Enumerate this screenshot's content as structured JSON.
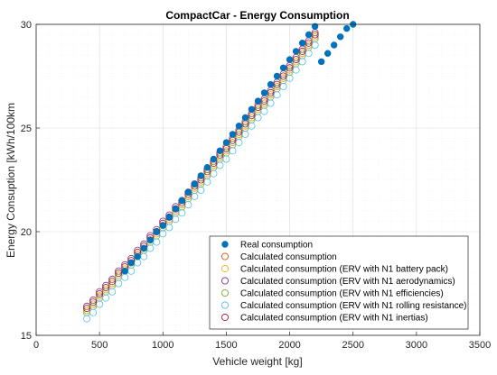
{
  "chart_data": {
    "type": "scatter",
    "title": "CompactCar - Energy Consumption",
    "xlabel": "Vehicle weight [kg]",
    "ylabel": "Energy Consuption [kWh/100km",
    "xlim": [
      0,
      3500
    ],
    "ylim": [
      15,
      30
    ],
    "xticks": [
      "0",
      "500",
      "1000",
      "1500",
      "2000",
      "2500",
      "3000",
      "3500"
    ],
    "yticks": [
      "15",
      "20",
      "25",
      "30"
    ],
    "grid": true,
    "legend_position": "bottom-right",
    "series": [
      {
        "name": "Real consumption",
        "marker": "filled-circle",
        "color": "#0072BD",
        "x": [
          700,
          750,
          800,
          850,
          900,
          950,
          1000,
          1050,
          1100,
          1150,
          1200,
          1250,
          1300,
          1350,
          1400,
          1450,
          1500,
          1550,
          1600,
          1650,
          1700,
          1750,
          1800,
          1850,
          1900,
          1950,
          2000,
          2050,
          2100,
          2150,
          2200,
          2250,
          2300,
          2350,
          2400,
          2450,
          2500
        ],
        "y": [
          18.1,
          18.5,
          18.8,
          19.2,
          19.6,
          20.0,
          20.3,
          20.7,
          21.1,
          21.5,
          21.9,
          22.3,
          22.7,
          23.1,
          23.5,
          23.9,
          24.3,
          24.7,
          25.1,
          25.5,
          25.9,
          26.3,
          26.7,
          27.1,
          27.5,
          27.9,
          28.3,
          28.7,
          29.1,
          29.5,
          29.9,
          28.2,
          28.6,
          29.0,
          29.4,
          29.8,
          30.0
        ]
      },
      {
        "name": "Calculated consumption",
        "marker": "open-circle",
        "color": "#D95319",
        "x": [
          400,
          450,
          500,
          550,
          600,
          650,
          700,
          750,
          800,
          850,
          900,
          950,
          1000,
          1050,
          1100,
          1150,
          1200,
          1250,
          1300,
          1350,
          1400,
          1450,
          1500,
          1550,
          1600,
          1650,
          1700,
          1750,
          1800,
          1850,
          1900,
          1950,
          2000,
          2050,
          2100,
          2150,
          2200
        ],
        "y": [
          16.2,
          16.5,
          16.9,
          17.2,
          17.5,
          17.9,
          18.2,
          18.5,
          18.9,
          19.2,
          19.6,
          19.9,
          20.3,
          20.6,
          21.0,
          21.3,
          21.7,
          22.1,
          22.4,
          22.8,
          23.2,
          23.6,
          23.9,
          24.3,
          24.7,
          25.1,
          25.5,
          25.9,
          26.2,
          26.6,
          27.0,
          27.4,
          27.8,
          28.2,
          28.6,
          29.0,
          29.4
        ]
      },
      {
        "name": "Calculated consumption (ERV with N1 battery pack)",
        "marker": "open-circle",
        "color": "#EDB120",
        "x": [
          400,
          450,
          500,
          550,
          600,
          650,
          700,
          750,
          800,
          850,
          900,
          950,
          1000,
          1050,
          1100,
          1150,
          1200,
          1250,
          1300,
          1350,
          1400,
          1450,
          1500,
          1550,
          1600,
          1650,
          1700,
          1750,
          1800,
          1850,
          1900,
          1950,
          2000,
          2050,
          2100,
          2150,
          2200
        ],
        "y": [
          16.2,
          16.5,
          16.9,
          17.2,
          17.5,
          17.9,
          18.2,
          18.5,
          18.9,
          19.2,
          19.6,
          19.9,
          20.3,
          20.6,
          21.0,
          21.3,
          21.7,
          22.1,
          22.4,
          22.8,
          23.2,
          23.6,
          23.9,
          24.3,
          24.7,
          25.1,
          25.5,
          25.9,
          26.2,
          26.6,
          27.0,
          27.4,
          27.8,
          28.2,
          28.6,
          29.0,
          29.4
        ]
      },
      {
        "name": "Calculated consumption (ERV with N1 aerodynamics)",
        "marker": "open-circle",
        "color": "#7E2F8E",
        "x": [
          400,
          450,
          500,
          550,
          600,
          650,
          700,
          750,
          800,
          850,
          900,
          950,
          1000,
          1050,
          1100,
          1150,
          1200,
          1250,
          1300,
          1350,
          1400,
          1450,
          1500,
          1550,
          1600,
          1650,
          1700,
          1750,
          1800,
          1850,
          1900,
          1950,
          2000,
          2050,
          2100,
          2150,
          2200
        ],
        "y": [
          16.4,
          16.7,
          17.1,
          17.4,
          17.7,
          18.1,
          18.4,
          18.7,
          19.1,
          19.4,
          19.8,
          20.1,
          20.5,
          20.8,
          21.2,
          21.5,
          21.9,
          22.3,
          22.6,
          23.0,
          23.4,
          23.8,
          24.1,
          24.5,
          24.9,
          25.3,
          25.7,
          26.1,
          26.4,
          26.8,
          27.2,
          27.6,
          28.0,
          28.4,
          28.8,
          29.2,
          29.6
        ]
      },
      {
        "name": "Calculated consumption (ERV with N1 efficiencies)",
        "marker": "open-circle",
        "color": "#77AC30",
        "x": [
          400,
          450,
          500,
          550,
          600,
          650,
          700,
          750,
          800,
          850,
          900,
          950,
          1000,
          1050,
          1100,
          1150,
          1200,
          1250,
          1300,
          1350,
          1400,
          1450,
          1500,
          1550,
          1600,
          1650,
          1700,
          1750,
          1800,
          1850,
          1900,
          1950,
          2000,
          2050,
          2100,
          2150,
          2200
        ],
        "y": [
          16.1,
          16.4,
          16.8,
          17.1,
          17.4,
          17.8,
          18.1,
          18.4,
          18.8,
          19.1,
          19.5,
          19.8,
          20.2,
          20.5,
          20.9,
          21.2,
          21.6,
          22.0,
          22.3,
          22.7,
          23.1,
          23.5,
          23.8,
          24.2,
          24.6,
          25.0,
          25.4,
          25.8,
          26.1,
          26.5,
          26.9,
          27.3,
          27.7,
          28.1,
          28.5,
          28.9,
          29.3
        ]
      },
      {
        "name": "Calculated consumption (ERV with N1 rolling resistance)",
        "marker": "open-circle",
        "color": "#4DBEEE",
        "x": [
          400,
          450,
          500,
          550,
          600,
          650,
          700,
          750,
          800,
          850,
          900,
          950,
          1000,
          1050,
          1100,
          1150,
          1200,
          1250,
          1300,
          1350,
          1400,
          1450,
          1500,
          1550,
          1600,
          1650,
          1700,
          1750,
          1800,
          1850,
          1900,
          1950,
          2000,
          2050,
          2100,
          2150,
          2200
        ],
        "y": [
          15.8,
          16.1,
          16.5,
          16.8,
          17.1,
          17.5,
          17.8,
          18.1,
          18.5,
          18.8,
          19.2,
          19.5,
          19.9,
          20.2,
          20.6,
          20.9,
          21.3,
          21.7,
          22.0,
          22.4,
          22.8,
          23.2,
          23.5,
          23.9,
          24.3,
          24.7,
          25.1,
          25.5,
          25.8,
          26.2,
          26.6,
          27.0,
          27.4,
          27.8,
          28.2,
          28.6,
          29.0
        ]
      },
      {
        "name": "Calculated consumption (ERV with N1 inertias)",
        "marker": "open-circle",
        "color": "#A2142F",
        "x": [
          400,
          450,
          500,
          550,
          600,
          650,
          700,
          750,
          800,
          850,
          900,
          950,
          1000,
          1050,
          1100,
          1150,
          1200,
          1250,
          1300,
          1350,
          1400,
          1450,
          1500,
          1550,
          1600,
          1650,
          1700,
          1750,
          1800,
          1850,
          1900,
          1950,
          2000,
          2050,
          2100,
          2150,
          2200
        ],
        "y": [
          16.3,
          16.6,
          17.0,
          17.3,
          17.6,
          18.0,
          18.3,
          18.6,
          19.0,
          19.3,
          19.7,
          20.0,
          20.4,
          20.7,
          21.1,
          21.4,
          21.8,
          22.2,
          22.5,
          22.9,
          23.3,
          23.7,
          24.0,
          24.4,
          24.8,
          25.2,
          25.6,
          26.0,
          26.3,
          26.7,
          27.1,
          27.5,
          27.9,
          28.3,
          28.7,
          29.1,
          29.5
        ]
      }
    ]
  }
}
